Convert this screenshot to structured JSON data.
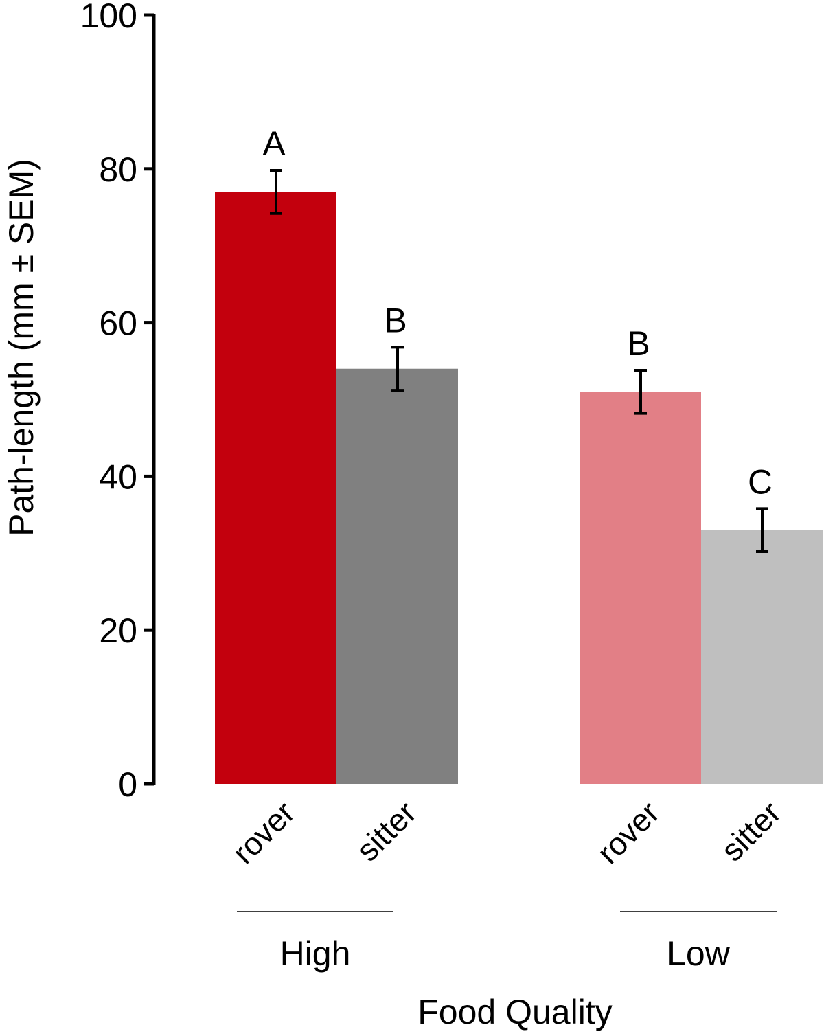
{
  "chart_data": {
    "type": "bar",
    "title": "",
    "xlabel": "Food Quality",
    "ylabel": "Path-length (mm ± SEM)",
    "ylim": [
      0,
      100
    ],
    "yticks": [
      "0",
      "20",
      "40",
      "60",
      "80",
      "100"
    ],
    "groups": [
      "High",
      "Low"
    ],
    "categories": [
      "rover",
      "sitter"
    ],
    "bars": [
      {
        "group": "High",
        "category": "rover",
        "value": 77,
        "sem": 2.8,
        "letter": "A",
        "color": "#c3000d"
      },
      {
        "group": "High",
        "category": "sitter",
        "value": 54,
        "sem": 2.8,
        "letter": "B",
        "color": "#808080"
      },
      {
        "group": "Low",
        "category": "rover",
        "value": 51,
        "sem": 2.8,
        "letter": "B",
        "color": "#e27f86"
      },
      {
        "group": "Low",
        "category": "sitter",
        "value": 33,
        "sem": 2.8,
        "letter": "C",
        "color": "#bfbfbf"
      }
    ],
    "grid": false,
    "legend": "none"
  }
}
